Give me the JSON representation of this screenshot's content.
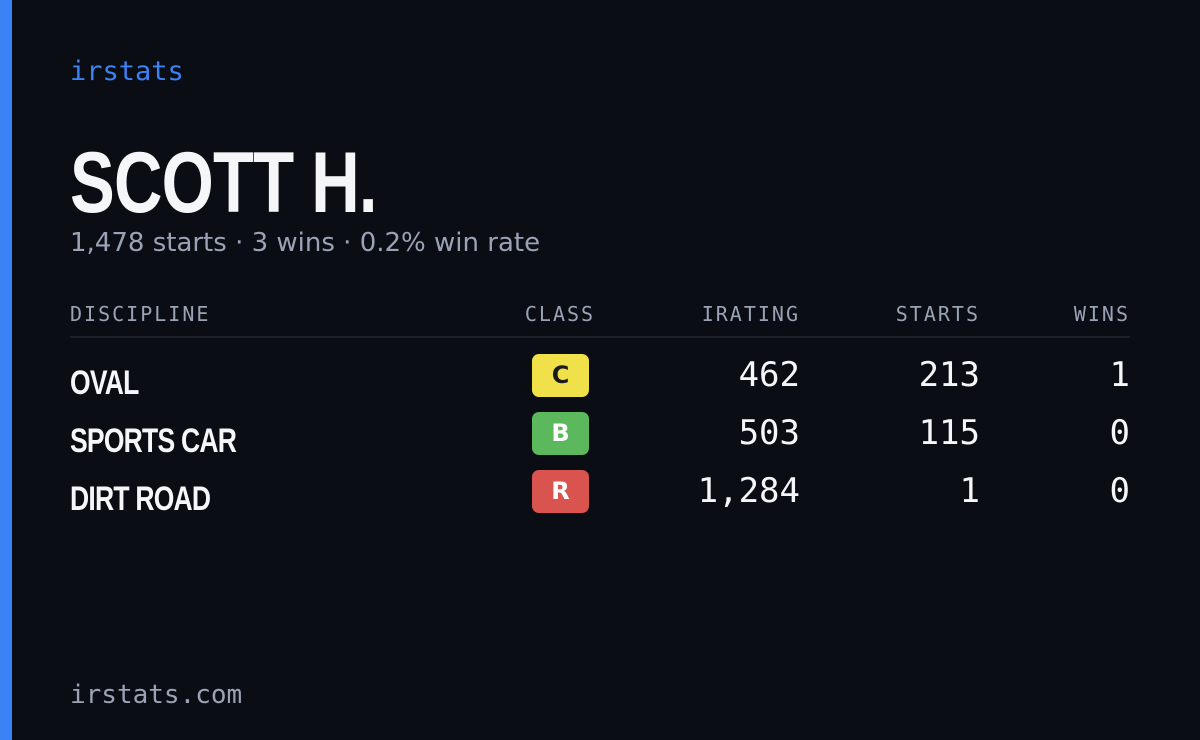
{
  "brand": "irstats",
  "driver": {
    "name": "SCOTT H.",
    "summary": "1,478 starts · 3 wins · 0.2% win rate"
  },
  "table": {
    "headers": [
      "DISCIPLINE",
      "CLASS",
      "IRATING",
      "STARTS",
      "WINS"
    ],
    "rows": [
      {
        "discipline": "OVAL",
        "class": "C",
        "class_color": "#f0e04a",
        "class_text_color": "#1a1a1a",
        "irating": "462",
        "starts": "213",
        "wins": "1"
      },
      {
        "discipline": "SPORTS CAR",
        "class": "B",
        "class_color": "#5cb85c",
        "class_text_color": "#ffffff",
        "irating": "503",
        "starts": "115",
        "wins": "0"
      },
      {
        "discipline": "DIRT ROAD",
        "class": "R",
        "class_color": "#d9534f",
        "class_text_color": "#ffffff",
        "irating": "1,284",
        "starts": "1",
        "wins": "0"
      }
    ]
  },
  "footer": "irstats.com"
}
